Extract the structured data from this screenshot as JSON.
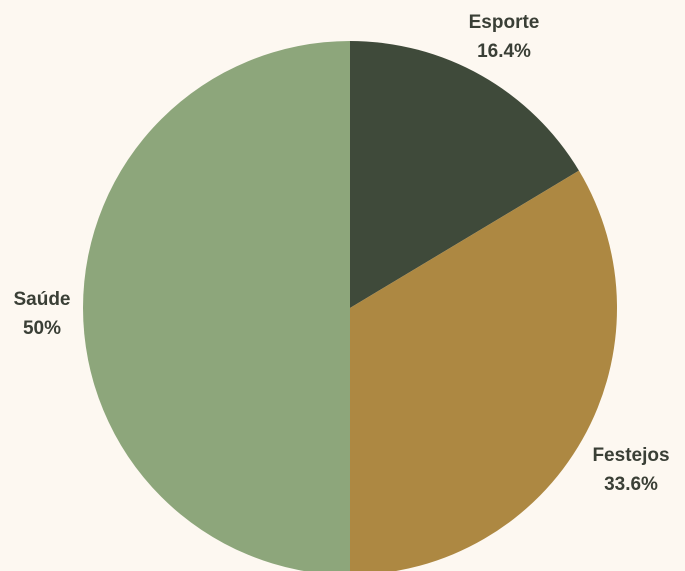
{
  "background_color": "#fdf8f1",
  "chart_data": {
    "type": "pie",
    "title": "",
    "start_angle_deg": 0,
    "direction": "clockwise",
    "slices": [
      {
        "label": "Esporte",
        "value": 16.4,
        "value_label": "16.4%",
        "color": "#3f4a3a"
      },
      {
        "label": "Festejos",
        "value": 33.6,
        "value_label": "33.6%",
        "color": "#ad8842"
      },
      {
        "label": "Saúde",
        "value": 50,
        "value_label": "50%",
        "color": "#8da67b"
      }
    ]
  }
}
